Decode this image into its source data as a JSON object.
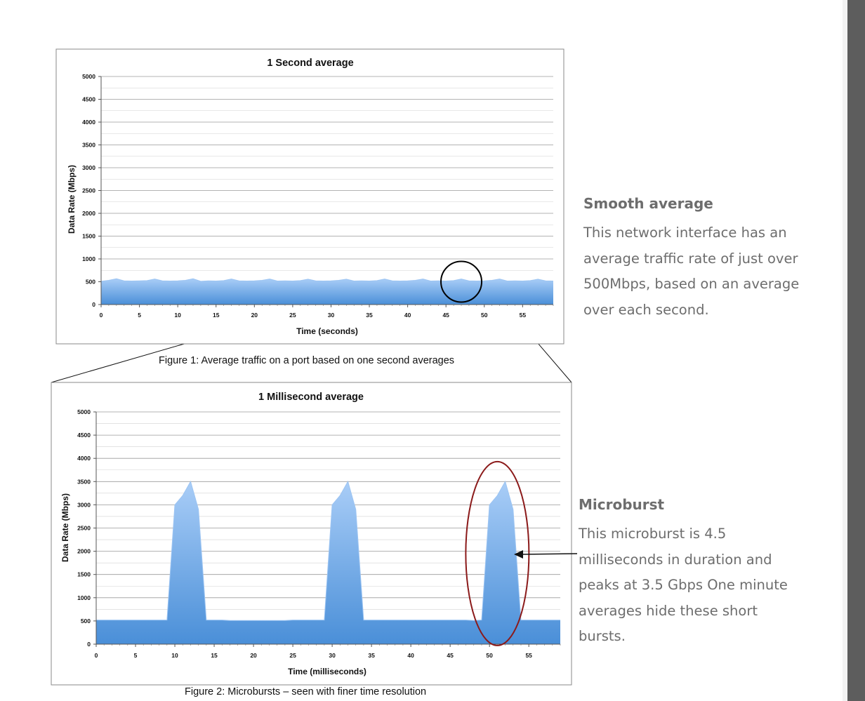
{
  "chart_data": [
    {
      "type": "area",
      "title": "1 Second average",
      "xlabel": "Time (seconds)",
      "ylabel": "Data Rate (Mbps)",
      "ylim": [
        0,
        5000
      ],
      "xlim": [
        0,
        59
      ],
      "yticks": [
        0,
        500,
        1000,
        1500,
        2000,
        2500,
        3000,
        3500,
        4000,
        4500,
        5000
      ],
      "xticks": [
        0,
        5,
        10,
        15,
        20,
        25,
        30,
        35,
        40,
        45,
        50,
        55
      ],
      "grid": true,
      "color": "#6aa8e8",
      "series": [
        {
          "x": [
            0,
            1,
            2,
            3,
            4,
            5,
            6,
            7,
            8,
            9,
            10,
            11,
            12,
            13,
            14,
            15,
            16,
            17,
            18,
            19,
            20,
            21,
            22,
            23,
            24,
            25,
            26,
            27,
            28,
            29,
            30,
            31,
            32,
            33,
            34,
            35,
            36,
            37,
            38,
            39,
            40,
            41,
            42,
            43,
            44,
            45,
            46,
            47,
            48,
            49,
            50,
            51,
            52,
            53,
            54,
            55,
            56,
            57,
            58,
            59
          ],
          "values": [
            510,
            530,
            565,
            520,
            515,
            520,
            525,
            560,
            520,
            515,
            520,
            530,
            565,
            510,
            520,
            515,
            525,
            560,
            520,
            515,
            520,
            530,
            560,
            515,
            520,
            515,
            525,
            555,
            520,
            515,
            520,
            530,
            555,
            515,
            520,
            515,
            525,
            560,
            520,
            515,
            520,
            530,
            560,
            515,
            520,
            515,
            525,
            560,
            520,
            515,
            520,
            530,
            560,
            515,
            520,
            515,
            525,
            555,
            520,
            515
          ]
        }
      ],
      "highlight": {
        "x": 47,
        "y": 500,
        "shape": "circle",
        "color": "#000000"
      }
    },
    {
      "type": "area",
      "title": "1 Millisecond average",
      "xlabel": "Time (milliseconds)",
      "ylabel": "Data Rate (Mbps)",
      "ylim": [
        0,
        5000
      ],
      "xlim": [
        0,
        59
      ],
      "yticks": [
        0,
        500,
        1000,
        1500,
        2000,
        2500,
        3000,
        3500,
        4000,
        4500,
        5000
      ],
      "xticks": [
        0,
        5,
        10,
        15,
        20,
        25,
        30,
        35,
        40,
        45,
        50,
        55
      ],
      "grid": true,
      "color": "#6aa8e8",
      "series": [
        {
          "x": [
            0,
            1,
            2,
            3,
            4,
            5,
            6,
            7,
            8,
            9,
            10,
            11,
            12,
            13,
            14,
            15,
            16,
            17,
            18,
            19,
            20,
            21,
            22,
            23,
            24,
            25,
            26,
            27,
            28,
            29,
            30,
            31,
            32,
            33,
            34,
            35,
            36,
            37,
            38,
            39,
            40,
            41,
            42,
            43,
            44,
            45,
            46,
            47,
            48,
            49,
            50,
            51,
            52,
            53,
            54,
            55,
            56,
            57,
            58,
            59
          ],
          "values": [
            520,
            520,
            520,
            520,
            520,
            520,
            520,
            520,
            520,
            520,
            3000,
            3200,
            3500,
            2900,
            520,
            520,
            520,
            510,
            510,
            510,
            510,
            510,
            510,
            510,
            510,
            520,
            520,
            520,
            520,
            520,
            3000,
            3200,
            3500,
            2900,
            520,
            520,
            520,
            520,
            520,
            520,
            520,
            520,
            520,
            520,
            520,
            520,
            520,
            520,
            510,
            520,
            3000,
            3200,
            3500,
            2900,
            520,
            520,
            520,
            520,
            520,
            520
          ]
        }
      ],
      "highlight": {
        "x": 51,
        "y": 1950,
        "shape": "ellipse",
        "color": "#8b1a1a"
      }
    }
  ],
  "captions": {
    "figure1": "Figure 1: Average traffic on a port based on one second averages",
    "figure2": "Figure 2: Microbursts – seen with finer time resolution"
  },
  "sidebar": {
    "smooth_title": "Smooth average",
    "smooth_lines": [
      "This network interface has an",
      "average traffic rate of just over",
      "500Mbps, based on an average",
      "over each second."
    ],
    "micro_title": "Microburst",
    "micro_lines": [
      "This microburst is 4.5",
      "milliseconds in duration and",
      "peaks at 3.5 Gbps One minute",
      "averages hide these short",
      "bursts."
    ]
  }
}
